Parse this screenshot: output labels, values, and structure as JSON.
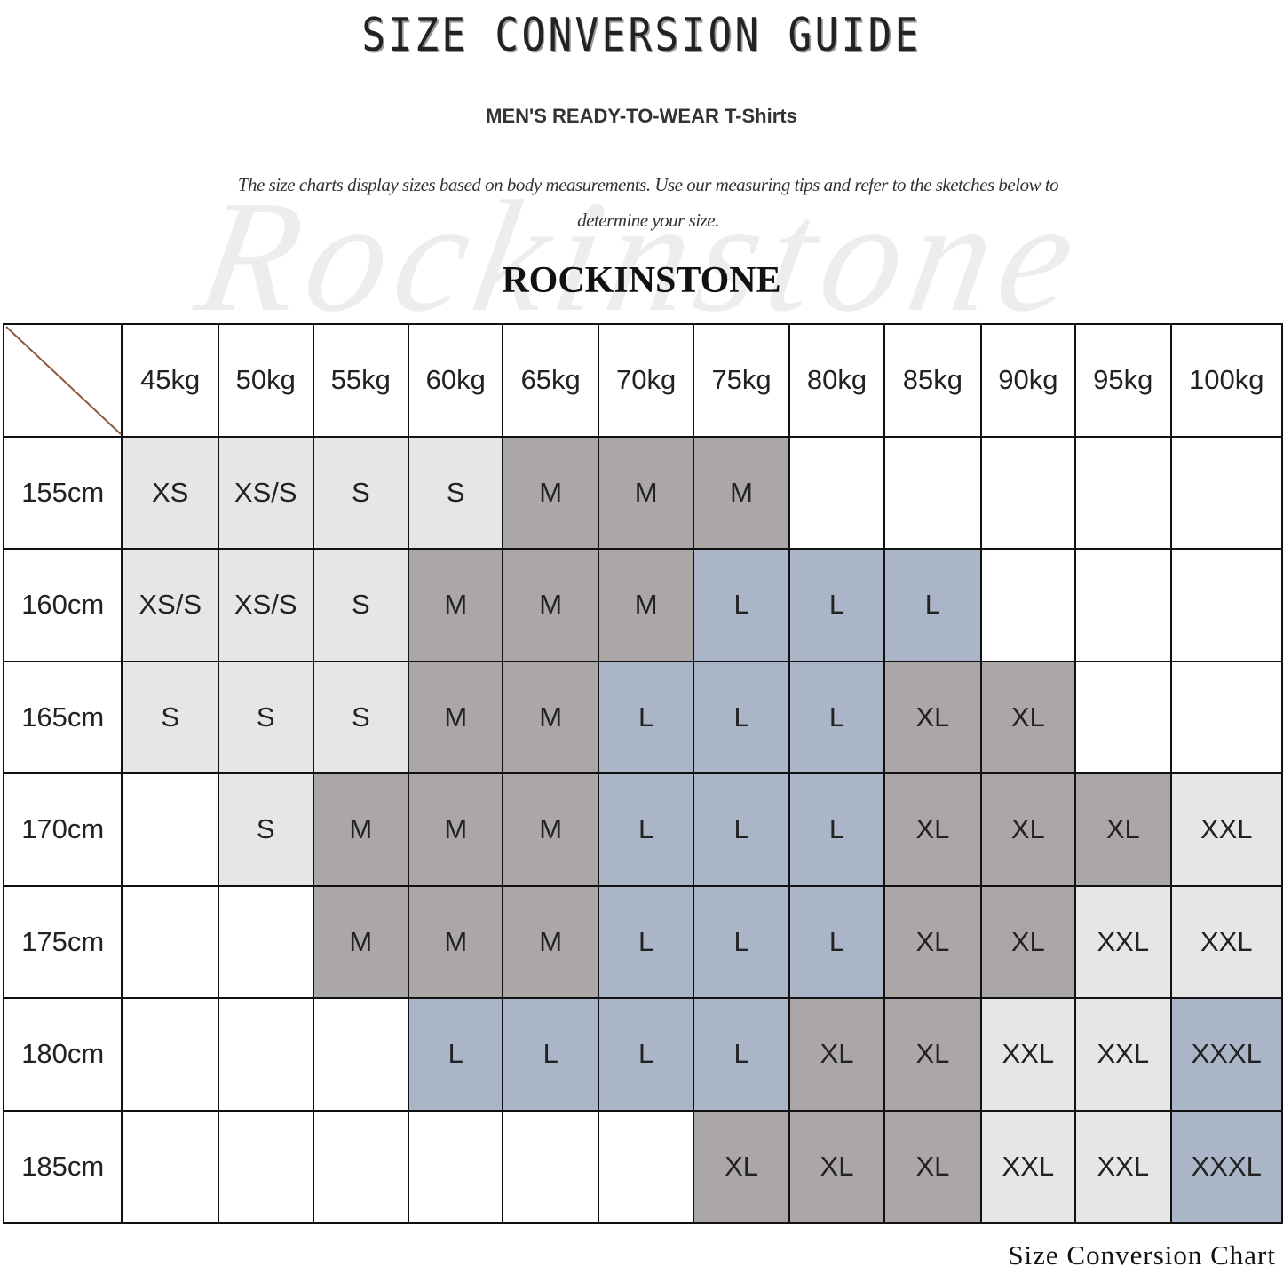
{
  "header": {
    "title": "SIZE CONVERSION GUIDE",
    "subtitle": "MEN'S READY-TO-WEAR T-Shirts",
    "description": "The size charts display sizes based on body measurements. Use our measuring tips and refer to the sketches below to determine your size.",
    "brand": "ROCKINSTONE",
    "watermark": "Rockinstone"
  },
  "footer": {
    "caption": "Size Conversion Chart"
  },
  "colors": {
    "XS": "#e6e6e6",
    "XS/S": "#e6e6e6",
    "S": "#e6e6e6",
    "M": "#aba7a6",
    "L": "#aab6c8",
    "XL": "#aba7a6",
    "XXL": "#e6e6e6",
    "XXXL": "#aab6c8",
    "empty": "#ffffff",
    "diagonal": "#8b5a3c"
  },
  "chart_data": {
    "type": "table",
    "columns": [
      "45kg",
      "50kg",
      "55kg",
      "60kg",
      "65kg",
      "70kg",
      "75kg",
      "80kg",
      "85kg",
      "90kg",
      "95kg",
      "100kg"
    ],
    "rows": [
      {
        "label": "155cm",
        "cells": [
          "XS",
          "XS/S",
          "S",
          "S",
          "M",
          "M",
          "M",
          "",
          "",
          "",
          "",
          ""
        ]
      },
      {
        "label": "160cm",
        "cells": [
          "XS/S",
          "XS/S",
          "S",
          "M",
          "M",
          "M",
          "L",
          "L",
          "L",
          "",
          "",
          ""
        ]
      },
      {
        "label": "165cm",
        "cells": [
          "S",
          "S",
          "S",
          "M",
          "M",
          "L",
          "L",
          "L",
          "XL",
          "XL",
          "",
          ""
        ]
      },
      {
        "label": "170cm",
        "cells": [
          "",
          "S",
          "M",
          "M",
          "M",
          "L",
          "L",
          "L",
          "XL",
          "XL",
          "XL",
          "XXL"
        ]
      },
      {
        "label": "175cm",
        "cells": [
          "",
          "",
          "M",
          "M",
          "M",
          "L",
          "L",
          "L",
          "XL",
          "XL",
          "XXL",
          "XXL"
        ]
      },
      {
        "label": "180cm",
        "cells": [
          "",
          "",
          "",
          "L",
          "L",
          "L",
          "L",
          "XL",
          "XL",
          "XXL",
          "XXL",
          "XXXL"
        ]
      },
      {
        "label": "185cm",
        "cells": [
          "",
          "",
          "",
          "",
          "",
          "",
          "XL",
          "XL",
          "XL",
          "XXL",
          "XXL",
          "XXXL"
        ]
      }
    ]
  }
}
